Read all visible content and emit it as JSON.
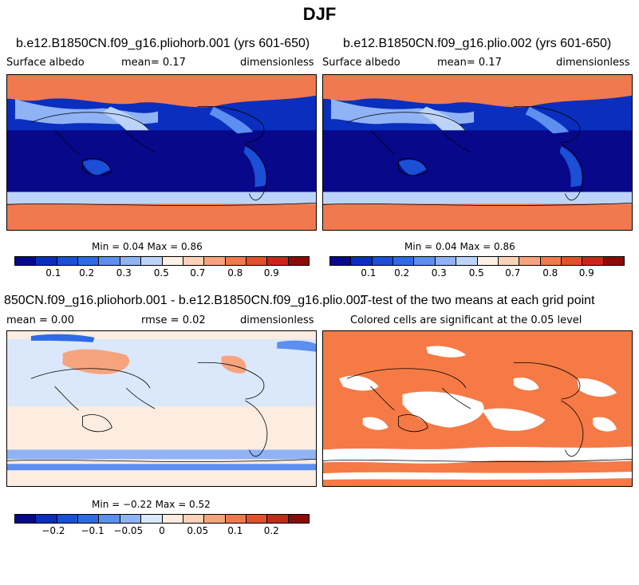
{
  "page": {
    "title": "DJF"
  },
  "colors": {
    "albedo_scale": [
      "#08088a",
      "#0a2ebd",
      "#1a4fd6",
      "#2e6ae6",
      "#5c8ff0",
      "#8fb3f5",
      "#bdd4fa",
      "#fdf1e6",
      "#fbd2b8",
      "#f6a47e",
      "#f0794f",
      "#e2512c",
      "#c8281a",
      "#8c0a0a"
    ],
    "diff_scale": [
      "#08088a",
      "#0a2ebd",
      "#1a4fd6",
      "#2e6ae6",
      "#5c8ff0",
      "#8fb3f5",
      "#dbe8fb",
      "#fdece0",
      "#fbd2b8",
      "#f6a47e",
      "#f0794f",
      "#e2512c",
      "#c8281a",
      "#8c0a0a"
    ],
    "significant": "#f57a45"
  },
  "panels": {
    "p1": {
      "title": "b.e12.B1850CN.f09_g16.pliohorb.001 (yrs 601-650)",
      "left_label": "Surface albedo",
      "center_label": "mean=   0.17",
      "right_label": "dimensionless",
      "minmax": "Min =   0.04 Max =   0.86",
      "colorbar_ticks": [
        "0.1",
        "0.2",
        "0.3",
        "0.5",
        "0.7",
        "0.8",
        "0.9"
      ]
    },
    "p2": {
      "title": "b.e12.B1850CN.f09_g16.plio.002 (yrs 601-650)",
      "left_label": "Surface albedo",
      "center_label": "mean=   0.17",
      "right_label": "dimensionless",
      "minmax": "Min =   0.04 Max =   0.86",
      "colorbar_ticks": [
        "0.1",
        "0.2",
        "0.3",
        "0.5",
        "0.7",
        "0.8",
        "0.9"
      ]
    },
    "p3": {
      "title": "850CN.f09_g16.pliohorb.001 - b.e12.B1850CN.f09_g16.plio.002",
      "left_label": "mean =   0.00",
      "center_label": "rmse =   0.02",
      "right_label": "dimensionless",
      "minmax": "Min =  −0.22 Max =   0.52",
      "colorbar_ticks": [
        "−0.2",
        "−0.1",
        "−0.05",
        "0",
        "0.05",
        "0.1",
        "0.2"
      ]
    },
    "p4": {
      "title": "T-test of the two means at each grid point",
      "subtitle": "Colored cells are significant at the 0.05 level"
    }
  },
  "chart_data": [
    {
      "type": "heatmap",
      "title": "b.e12.B1850CN.f09_g16.pliohorb.001 (yrs 601-650)",
      "variable": "Surface albedo",
      "units": "dimensionless",
      "mean": 0.17,
      "min": 0.04,
      "max": 0.86,
      "colorbar_levels": [
        "0.1",
        "0.2",
        "0.3",
        "0.5",
        "0.7",
        "0.8",
        "0.9"
      ]
    },
    {
      "type": "heatmap",
      "title": "b.e12.B1850CN.f09_g16.plio.002 (yrs 601-650)",
      "variable": "Surface albedo",
      "units": "dimensionless",
      "mean": 0.17,
      "min": 0.04,
      "max": 0.86,
      "colorbar_levels": [
        "0.1",
        "0.2",
        "0.3",
        "0.5",
        "0.7",
        "0.8",
        "0.9"
      ]
    },
    {
      "type": "heatmap",
      "title": "850CN.f09_g16.pliohorb.001 - b.e12.B1850CN.f09_g16.plio.002",
      "units": "dimensionless",
      "mean": 0.0,
      "rmse": 0.02,
      "min": -0.22,
      "max": 0.52,
      "colorbar_levels": [
        "−0.2",
        "−0.1",
        "−0.05",
        "0",
        "0.05",
        "0.1",
        "0.2"
      ]
    },
    {
      "type": "heatmap",
      "title": "T-test of the two means at each grid point",
      "subtitle": "Colored cells are significant at the 0.05 level"
    }
  ]
}
